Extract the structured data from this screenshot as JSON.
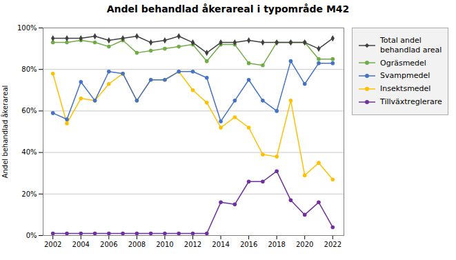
{
  "chart_data": {
    "type": "line",
    "title": "Andel behandlad åkerareal i typområde M42",
    "ylabel": "Andel behandlad åkerareal",
    "x": [
      2002,
      2003,
      2004,
      2005,
      2006,
      2007,
      2008,
      2009,
      2010,
      2011,
      2012,
      2013,
      2014,
      2015,
      2016,
      2017,
      2018,
      2019,
      2020,
      2021,
      2022
    ],
    "series": [
      {
        "name": "Total andel\nbehandlad areal",
        "color": "#404040",
        "marker": "diamond",
        "values": [
          95,
          95,
          95,
          96,
          94,
          95,
          96,
          93,
          94,
          96,
          93,
          88,
          93,
          93,
          94,
          93,
          93,
          93,
          93,
          90,
          95
        ]
      },
      {
        "name": "Ogräsmedel",
        "color": "#70ad47",
        "marker": "circle",
        "values": [
          93,
          93,
          94,
          93,
          91,
          94,
          88,
          89,
          90,
          91,
          92,
          84,
          92,
          92,
          83,
          82,
          93,
          93,
          93,
          85,
          85
        ]
      },
      {
        "name": "Svampmedel",
        "color": "#4472c4",
        "marker": "circle",
        "values": [
          59,
          56,
          74,
          65,
          79,
          78,
          65,
          75,
          75,
          79,
          79,
          76,
          55,
          65,
          75,
          65,
          60,
          84,
          73,
          83,
          83
        ]
      },
      {
        "name": "Insektsmedel",
        "color": "#ffc000",
        "marker": "circle",
        "values": [
          78,
          54,
          66,
          65,
          73,
          78,
          65,
          75,
          75,
          79,
          70,
          64,
          52,
          57,
          52,
          39,
          38,
          65,
          29,
          35,
          27
        ]
      },
      {
        "name": "Tillväxtreglerare",
        "color": "#7030a0",
        "marker": "circle",
        "values": [
          1,
          1,
          1,
          1,
          1,
          1,
          1,
          1,
          1,
          1,
          1,
          1,
          16,
          15,
          26,
          26,
          31,
          17,
          10,
          16,
          4
        ]
      }
    ],
    "xlim": [
      2001.3,
      2022.8
    ],
    "xticks": [
      2002,
      2004,
      2006,
      2008,
      2010,
      2012,
      2014,
      2016,
      2018,
      2020,
      2022
    ],
    "ylim": [
      0,
      100
    ],
    "yticks": [
      {
        "value": 0,
        "label": "0%"
      },
      {
        "value": 20,
        "label": "20%"
      },
      {
        "value": 40,
        "label": "40%"
      },
      {
        "value": 60,
        "label": "60%"
      },
      {
        "value": 80,
        "label": "80%"
      },
      {
        "value": 100,
        "label": "100%"
      }
    ],
    "grid": true,
    "legend": "right"
  }
}
